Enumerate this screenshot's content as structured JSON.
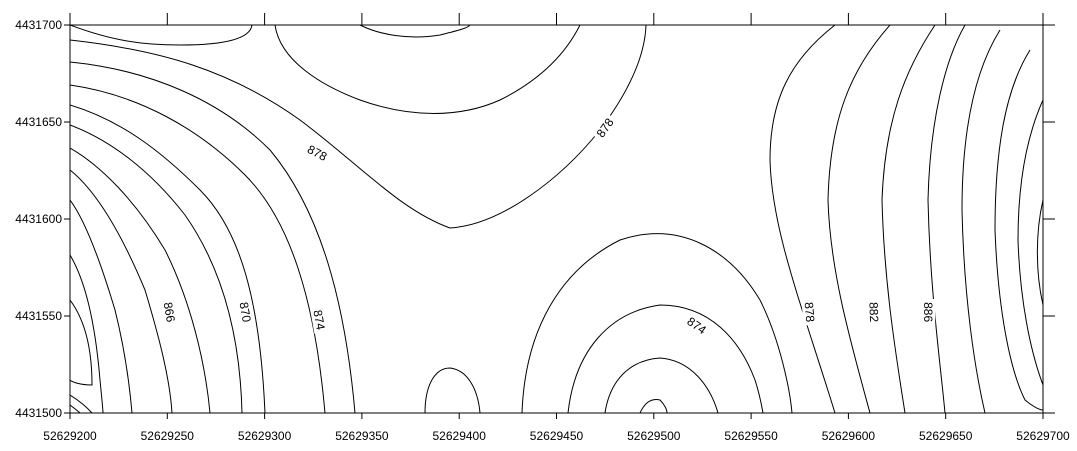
{
  "chart_data": {
    "type": "contour",
    "title": "",
    "xlabel": "",
    "ylabel": "",
    "xlim": [
      52629200,
      52629700
    ],
    "ylim": [
      4431500,
      4431700
    ],
    "x_ticks": [
      52629200,
      52629250,
      52629300,
      52629350,
      52629400,
      52629450,
      52629500,
      52629550,
      52629600,
      52629650,
      52629700
    ],
    "y_ticks": [
      4431500,
      4431550,
      4431600,
      4431650,
      4431700
    ],
    "x_tick_labels": [
      "52629200",
      "52629250",
      "52629300",
      "52629350",
      "52629400",
      "52629450",
      "52629500",
      "52629550",
      "52629600",
      "52629650",
      "52629700"
    ],
    "y_tick_labels": [
      "4431500",
      "4431550",
      "4431600",
      "4431650",
      "4431700"
    ],
    "contour_interval": 2,
    "contour_labels": [
      {
        "text": "866",
        "x": 52629251,
        "y": 4431552,
        "angle": 80
      },
      {
        "text": "870",
        "x": 52629290,
        "y": 4431552,
        "angle": 80
      },
      {
        "text": "874",
        "x": 52629328,
        "y": 4431548,
        "angle": 80
      },
      {
        "text": "878",
        "x": 52629327,
        "y": 4431634,
        "angle": 28
      },
      {
        "text": "878",
        "x": 52629475,
        "y": 4431647,
        "angle": -55
      },
      {
        "text": "874",
        "x": 52629522,
        "y": 4431545,
        "angle": 35
      },
      {
        "text": "878",
        "x": 52629580,
        "y": 4431552,
        "angle": 85
      },
      {
        "text": "882",
        "x": 52629613,
        "y": 4431552,
        "angle": 88
      },
      {
        "text": "886",
        "x": 52629641,
        "y": 4431552,
        "angle": 90
      }
    ],
    "grid": false,
    "legend": "none"
  }
}
